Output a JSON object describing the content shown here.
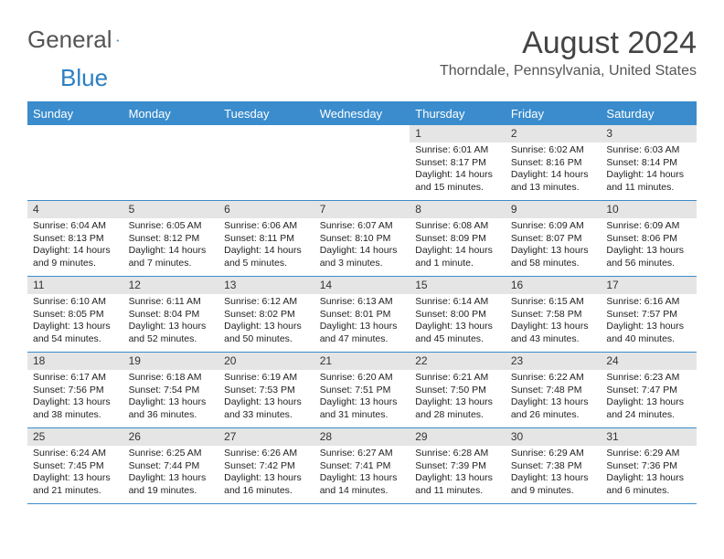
{
  "logo": {
    "text_a": "General",
    "text_b": "Blue"
  },
  "title": "August 2024",
  "location": "Thorndale, Pennsylvania, United States",
  "accent_color": "#3a8ccc",
  "header_bg": "#e5e5e5",
  "day_names": [
    "Sunday",
    "Monday",
    "Tuesday",
    "Wednesday",
    "Thursday",
    "Friday",
    "Saturday"
  ],
  "weeks": [
    [
      null,
      null,
      null,
      null,
      {
        "n": "1",
        "sr": "Sunrise: 6:01 AM",
        "ss": "Sunset: 8:17 PM",
        "dl1": "Daylight: 14 hours",
        "dl2": "and 15 minutes."
      },
      {
        "n": "2",
        "sr": "Sunrise: 6:02 AM",
        "ss": "Sunset: 8:16 PM",
        "dl1": "Daylight: 14 hours",
        "dl2": "and 13 minutes."
      },
      {
        "n": "3",
        "sr": "Sunrise: 6:03 AM",
        "ss": "Sunset: 8:14 PM",
        "dl1": "Daylight: 14 hours",
        "dl2": "and 11 minutes."
      }
    ],
    [
      {
        "n": "4",
        "sr": "Sunrise: 6:04 AM",
        "ss": "Sunset: 8:13 PM",
        "dl1": "Daylight: 14 hours",
        "dl2": "and 9 minutes."
      },
      {
        "n": "5",
        "sr": "Sunrise: 6:05 AM",
        "ss": "Sunset: 8:12 PM",
        "dl1": "Daylight: 14 hours",
        "dl2": "and 7 minutes."
      },
      {
        "n": "6",
        "sr": "Sunrise: 6:06 AM",
        "ss": "Sunset: 8:11 PM",
        "dl1": "Daylight: 14 hours",
        "dl2": "and 5 minutes."
      },
      {
        "n": "7",
        "sr": "Sunrise: 6:07 AM",
        "ss": "Sunset: 8:10 PM",
        "dl1": "Daylight: 14 hours",
        "dl2": "and 3 minutes."
      },
      {
        "n": "8",
        "sr": "Sunrise: 6:08 AM",
        "ss": "Sunset: 8:09 PM",
        "dl1": "Daylight: 14 hours",
        "dl2": "and 1 minute."
      },
      {
        "n": "9",
        "sr": "Sunrise: 6:09 AM",
        "ss": "Sunset: 8:07 PM",
        "dl1": "Daylight: 13 hours",
        "dl2": "and 58 minutes."
      },
      {
        "n": "10",
        "sr": "Sunrise: 6:09 AM",
        "ss": "Sunset: 8:06 PM",
        "dl1": "Daylight: 13 hours",
        "dl2": "and 56 minutes."
      }
    ],
    [
      {
        "n": "11",
        "sr": "Sunrise: 6:10 AM",
        "ss": "Sunset: 8:05 PM",
        "dl1": "Daylight: 13 hours",
        "dl2": "and 54 minutes."
      },
      {
        "n": "12",
        "sr": "Sunrise: 6:11 AM",
        "ss": "Sunset: 8:04 PM",
        "dl1": "Daylight: 13 hours",
        "dl2": "and 52 minutes."
      },
      {
        "n": "13",
        "sr": "Sunrise: 6:12 AM",
        "ss": "Sunset: 8:02 PM",
        "dl1": "Daylight: 13 hours",
        "dl2": "and 50 minutes."
      },
      {
        "n": "14",
        "sr": "Sunrise: 6:13 AM",
        "ss": "Sunset: 8:01 PM",
        "dl1": "Daylight: 13 hours",
        "dl2": "and 47 minutes."
      },
      {
        "n": "15",
        "sr": "Sunrise: 6:14 AM",
        "ss": "Sunset: 8:00 PM",
        "dl1": "Daylight: 13 hours",
        "dl2": "and 45 minutes."
      },
      {
        "n": "16",
        "sr": "Sunrise: 6:15 AM",
        "ss": "Sunset: 7:58 PM",
        "dl1": "Daylight: 13 hours",
        "dl2": "and 43 minutes."
      },
      {
        "n": "17",
        "sr": "Sunrise: 6:16 AM",
        "ss": "Sunset: 7:57 PM",
        "dl1": "Daylight: 13 hours",
        "dl2": "and 40 minutes."
      }
    ],
    [
      {
        "n": "18",
        "sr": "Sunrise: 6:17 AM",
        "ss": "Sunset: 7:56 PM",
        "dl1": "Daylight: 13 hours",
        "dl2": "and 38 minutes."
      },
      {
        "n": "19",
        "sr": "Sunrise: 6:18 AM",
        "ss": "Sunset: 7:54 PM",
        "dl1": "Daylight: 13 hours",
        "dl2": "and 36 minutes."
      },
      {
        "n": "20",
        "sr": "Sunrise: 6:19 AM",
        "ss": "Sunset: 7:53 PM",
        "dl1": "Daylight: 13 hours",
        "dl2": "and 33 minutes."
      },
      {
        "n": "21",
        "sr": "Sunrise: 6:20 AM",
        "ss": "Sunset: 7:51 PM",
        "dl1": "Daylight: 13 hours",
        "dl2": "and 31 minutes."
      },
      {
        "n": "22",
        "sr": "Sunrise: 6:21 AM",
        "ss": "Sunset: 7:50 PM",
        "dl1": "Daylight: 13 hours",
        "dl2": "and 28 minutes."
      },
      {
        "n": "23",
        "sr": "Sunrise: 6:22 AM",
        "ss": "Sunset: 7:48 PM",
        "dl1": "Daylight: 13 hours",
        "dl2": "and 26 minutes."
      },
      {
        "n": "24",
        "sr": "Sunrise: 6:23 AM",
        "ss": "Sunset: 7:47 PM",
        "dl1": "Daylight: 13 hours",
        "dl2": "and 24 minutes."
      }
    ],
    [
      {
        "n": "25",
        "sr": "Sunrise: 6:24 AM",
        "ss": "Sunset: 7:45 PM",
        "dl1": "Daylight: 13 hours",
        "dl2": "and 21 minutes."
      },
      {
        "n": "26",
        "sr": "Sunrise: 6:25 AM",
        "ss": "Sunset: 7:44 PM",
        "dl1": "Daylight: 13 hours",
        "dl2": "and 19 minutes."
      },
      {
        "n": "27",
        "sr": "Sunrise: 6:26 AM",
        "ss": "Sunset: 7:42 PM",
        "dl1": "Daylight: 13 hours",
        "dl2": "and 16 minutes."
      },
      {
        "n": "28",
        "sr": "Sunrise: 6:27 AM",
        "ss": "Sunset: 7:41 PM",
        "dl1": "Daylight: 13 hours",
        "dl2": "and 14 minutes."
      },
      {
        "n": "29",
        "sr": "Sunrise: 6:28 AM",
        "ss": "Sunset: 7:39 PM",
        "dl1": "Daylight: 13 hours",
        "dl2": "and 11 minutes."
      },
      {
        "n": "30",
        "sr": "Sunrise: 6:29 AM",
        "ss": "Sunset: 7:38 PM",
        "dl1": "Daylight: 13 hours",
        "dl2": "and 9 minutes."
      },
      {
        "n": "31",
        "sr": "Sunrise: 6:29 AM",
        "ss": "Sunset: 7:36 PM",
        "dl1": "Daylight: 13 hours",
        "dl2": "and 6 minutes."
      }
    ]
  ]
}
